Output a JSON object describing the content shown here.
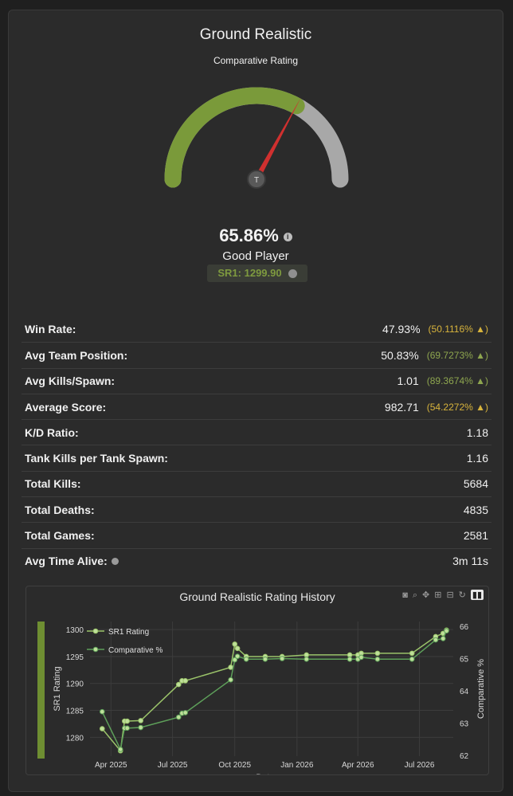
{
  "header": {
    "title": "Ground Realistic",
    "subtitle": "Comparative Rating"
  },
  "gauge": {
    "fill_fraction": 0.6586,
    "accent_color": "#7a9a3a",
    "needle_color": "#d0302f",
    "hub_glyph": "T"
  },
  "summary": {
    "percent": "65.86%",
    "rank": "Good Player",
    "sr_label": "SR1: 1299.90"
  },
  "stats": [
    {
      "label": "Win Rate:",
      "value": "47.93%",
      "compare": "(50.1116% ▲)",
      "compare_color": "yellow"
    },
    {
      "label": "Avg Team Position:",
      "value": "50.83%",
      "compare": "(69.7273% ▲)",
      "compare_color": "green"
    },
    {
      "label": "Avg Kills/Spawn:",
      "value": "1.01",
      "compare": "(89.3674% ▲)",
      "compare_color": "green"
    },
    {
      "label": "Average Score:",
      "value": "982.71",
      "compare": "(54.2272% ▲)",
      "compare_color": "yellow"
    },
    {
      "label": "K/D Ratio:",
      "value": "1.18",
      "compare": ""
    },
    {
      "label": "Tank Kills per Tank Spawn:",
      "value": "1.16",
      "compare": ""
    },
    {
      "label": "Total Kills:",
      "value": "5684",
      "compare": ""
    },
    {
      "label": "Total Deaths:",
      "value": "4835",
      "compare": ""
    },
    {
      "label": "Total Games:",
      "value": "2581",
      "compare": ""
    },
    {
      "label": "Avg Time Alive:",
      "value": "3m 11s",
      "compare": "",
      "info": true
    }
  ],
  "toolbar_icons": [
    "camera-icon",
    "zoom-icon",
    "pan-icon",
    "zoom-in-icon",
    "zoom-out-icon",
    "reset-icon",
    "plotly-logo-icon"
  ],
  "chart_data": {
    "type": "line",
    "title": "Ground Realistic Rating History",
    "xlabel": "Date",
    "ylabel": "SR1 Rating",
    "y2label": "Comparative %",
    "x_ticks": [
      "Apr 2025",
      "Jul 2025",
      "Oct 2025",
      "Jan 2026",
      "Apr 2026",
      "Jul 2026"
    ],
    "y_ticks": [
      1280,
      1285,
      1290,
      1295,
      1300
    ],
    "y2_ticks": [
      62,
      63,
      64,
      65,
      66
    ],
    "ylim": [
      1276.5,
      1301.5
    ],
    "y2lim": [
      61.97,
      66.15
    ],
    "legend_placement": "top-left",
    "series": [
      {
        "name": "SR1 Rating",
        "axis": "y",
        "color": "#9bc46a",
        "x": [
          "2025-03-19",
          "2025-04-15",
          "2025-04-21",
          "2025-04-25",
          "2025-05-15",
          "2025-07-10",
          "2025-07-15",
          "2025-07-20",
          "2025-09-25",
          "2025-10-01",
          "2025-10-05",
          "2025-10-18",
          "2025-11-15",
          "2025-12-10",
          "2026-01-15",
          "2026-03-20",
          "2026-04-01",
          "2026-04-06",
          "2026-04-30",
          "2026-06-20",
          "2026-07-25",
          "2026-08-05",
          "2026-08-10"
        ],
        "y": [
          1281.6,
          1277.5,
          1283.0,
          1283.0,
          1283.1,
          1289.8,
          1290.5,
          1290.5,
          1293.0,
          1297.3,
          1296.5,
          1295.0,
          1295.0,
          1295.0,
          1295.3,
          1295.3,
          1295.3,
          1295.6,
          1295.6,
          1295.6,
          1298.7,
          1299.3,
          1299.9
        ]
      },
      {
        "name": "Comparative %",
        "axis": "y2",
        "color": "#5ea05a",
        "x": [
          "2025-03-19",
          "2025-04-15",
          "2025-04-21",
          "2025-04-25",
          "2025-05-15",
          "2025-07-10",
          "2025-07-15",
          "2025-07-20",
          "2025-09-25",
          "2025-10-01",
          "2025-10-05",
          "2025-10-18",
          "2025-11-15",
          "2025-12-10",
          "2026-01-15",
          "2026-03-20",
          "2026-04-01",
          "2026-04-06",
          "2026-04-30",
          "2026-06-20",
          "2026-07-25",
          "2026-08-05",
          "2026-08-10"
        ],
        "y": [
          63.35,
          62.18,
          62.84,
          62.84,
          62.86,
          63.18,
          63.3,
          63.32,
          64.34,
          64.96,
          65.07,
          64.98,
          64.98,
          65.0,
          64.98,
          64.98,
          64.98,
          65.04,
          64.98,
          64.98,
          65.58,
          65.62,
          65.86
        ]
      }
    ]
  }
}
